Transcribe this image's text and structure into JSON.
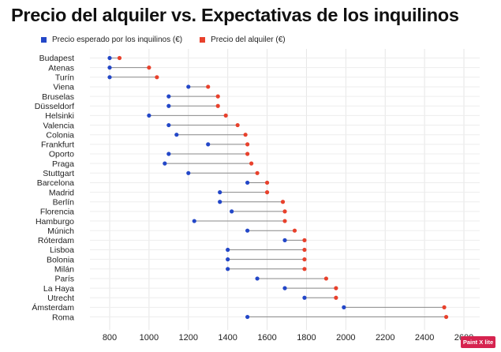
{
  "chart_data": {
    "type": "dumbbell",
    "title": "Precio del alquiler vs. Expectativas de los inquilinos",
    "legend_position": "top-left",
    "grid": true,
    "xlim": [
      700,
      2650
    ],
    "x_ticks": [
      800,
      1000,
      1200,
      1400,
      1600,
      1800,
      2000,
      2200,
      2400,
      2600
    ],
    "series": [
      {
        "name": "Precio esperado por los inquilinos (€)",
        "color": "#2347c8"
      },
      {
        "name": "Precio del alquiler (€)",
        "color": "#e8412c"
      }
    ],
    "categories": [
      "Budapest",
      "Atenas",
      "Turín",
      "Viena",
      "Bruselas",
      "Düsseldorf",
      "Helsinki",
      "Valencia",
      "Colonia",
      "Frankfurt",
      "Oporto",
      "Praga",
      "Stuttgart",
      "Barcelona",
      "Madrid",
      "Berlín",
      "Florencia",
      "Hamburgo",
      "Múnich",
      "Róterdam",
      "Lisboa",
      "Bolonia",
      "Milán",
      "París",
      "La Haya",
      "Utrecht",
      "Ámsterdam",
      "Roma"
    ],
    "expected": [
      800,
      800,
      800,
      1200,
      1100,
      1100,
      1000,
      1100,
      1140,
      1300,
      1100,
      1080,
      1200,
      1500,
      1360,
      1360,
      1420,
      1230,
      1500,
      1690,
      1400,
      1400,
      1400,
      1550,
      1690,
      1790,
      1990,
      1500
    ],
    "rent": [
      850,
      1000,
      1040,
      1300,
      1350,
      1350,
      1390,
      1450,
      1490,
      1500,
      1500,
      1520,
      1550,
      1600,
      1600,
      1680,
      1690,
      1690,
      1740,
      1790,
      1790,
      1790,
      1790,
      1900,
      1950,
      1950,
      2500,
      2510
    ]
  },
  "badge": "Paint X lite"
}
